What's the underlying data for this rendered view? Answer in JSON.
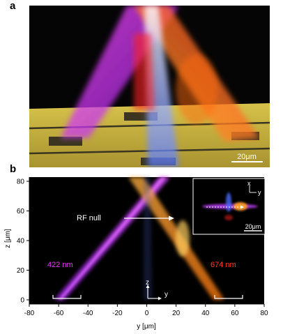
{
  "panel_a": {
    "letter": "a",
    "scale_bar": "20μm"
  },
  "panel_b": {
    "letter": "b",
    "annotation_rf_null": "RF null",
    "label_422": "422 nm",
    "label_674": "674 nm",
    "inset_scale_bar": "20μm",
    "inset_axis_x": "x",
    "inset_axis_y": "y",
    "coord_axis_z": "z",
    "coord_axis_y": "y",
    "x_axis_title": "y [μm]",
    "y_axis_title": "z [μm]",
    "x_ticks": [
      "-80",
      "-60",
      "-40",
      "-20",
      "0",
      "20",
      "40",
      "60",
      "80"
    ],
    "y_ticks": [
      "0",
      "20",
      "40",
      "60",
      "80"
    ],
    "colors": {
      "violet_beam": "#c33cff",
      "red_beam": "#ff7a1a",
      "label_422": "#e23ef0",
      "label_674": "#ff3b1f",
      "chip": "#c9b23a"
    }
  }
}
